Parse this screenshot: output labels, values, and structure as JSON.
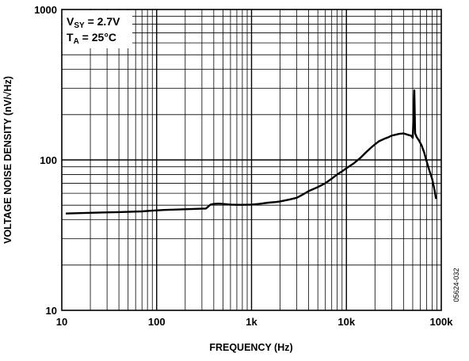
{
  "chart_data": {
    "type": "line",
    "title": "",
    "xlabel": "FREQUENCY (Hz)",
    "ylabel": "VOLTAGE NOISE DENSITY (nV/√Hz)",
    "x_scale": "log",
    "y_scale": "log",
    "xlim": [
      10,
      100000
    ],
    "ylim": [
      10,
      1000
    ],
    "grid": true,
    "x_ticks": [
      {
        "value": 10,
        "label": "10"
      },
      {
        "value": 100,
        "label": "100"
      },
      {
        "value": 1000,
        "label": "1k"
      },
      {
        "value": 10000,
        "label": "10k"
      },
      {
        "value": 100000,
        "label": "100k"
      }
    ],
    "y_ticks": [
      {
        "value": 10,
        "label": "10"
      },
      {
        "value": 100,
        "label": "100"
      },
      {
        "value": 1000,
        "label": "1000"
      }
    ],
    "conditions": [
      {
        "name": "V",
        "sub": "SY",
        "rest": " = 2.7V"
      },
      {
        "name": "T",
        "sub": "A",
        "rest": " = 25°C"
      }
    ],
    "figure_id": "05624-032",
    "series": [
      {
        "values_x": [
          11,
          20,
          40,
          70,
          90,
          120,
          200,
          330,
          350,
          370,
          400,
          450,
          500,
          600,
          700,
          800,
          1000,
          1200,
          1500,
          1800,
          2000,
          2500,
          3000,
          3500,
          4000,
          5000,
          6000,
          7000,
          8000,
          9000,
          10000,
          12000,
          14000,
          16000,
          18000,
          20000,
          22000,
          25000,
          28000,
          30000,
          33000,
          36000,
          40000,
          43000,
          46000,
          48000,
          50000,
          51000,
          52000,
          53000,
          55000,
          58000,
          62000,
          66000,
          70000,
          75000,
          80000,
          85000,
          88000
        ],
        "values_y": [
          44,
          44.5,
          45,
          45.5,
          46,
          46.5,
          47,
          47.5,
          49,
          50.5,
          51,
          51.2,
          51,
          50.5,
          50.3,
          50.3,
          50.5,
          51,
          52,
          52.5,
          53,
          54.5,
          56,
          59,
          62,
          66,
          70,
          75,
          80,
          84,
          88,
          95,
          103,
          112,
          120,
          127,
          133,
          138,
          142,
          145,
          147,
          149,
          150,
          148,
          146,
          145,
          140,
          200,
          290,
          150,
          142,
          135,
          125,
          112,
          98,
          85,
          75,
          63,
          55
        ]
      }
    ]
  }
}
